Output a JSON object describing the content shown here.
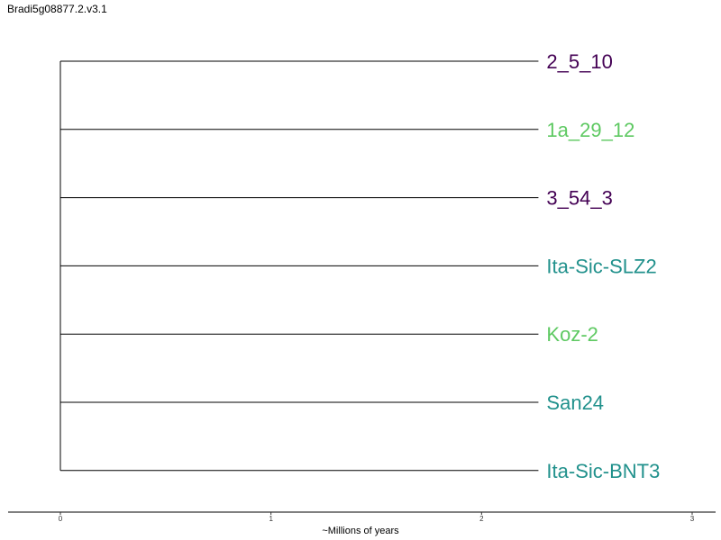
{
  "title": "Bradi5g08877.2.v3.1",
  "axis": {
    "label": "~Millions of years",
    "min": 0,
    "max": 3,
    "ticks": [
      "0",
      "1",
      "2",
      "3"
    ]
  },
  "tree": {
    "root_age": 0,
    "tip_age": 2.27,
    "leaves": [
      {
        "name": "2_5_10",
        "color": "#440154"
      },
      {
        "name": "1a_29_12",
        "color": "#5ec962"
      },
      {
        "name": "3_54_3",
        "color": "#440154"
      },
      {
        "name": "Ita-Sic-SLZ2",
        "color": "#21918c"
      },
      {
        "name": "Koz-2",
        "color": "#5ec962"
      },
      {
        "name": "San24",
        "color": "#21918c"
      },
      {
        "name": "Ita-Sic-BNT3",
        "color": "#21918c"
      }
    ]
  }
}
